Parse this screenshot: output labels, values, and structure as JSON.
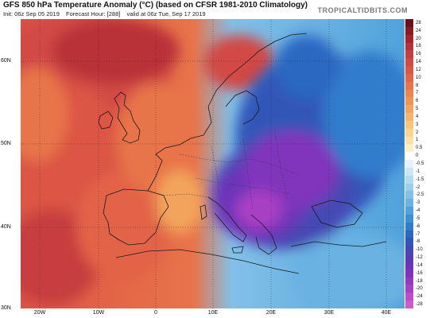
{
  "header": {
    "title": "GFS 850 hPa Temperature Anomaly (°C) (based on CFSR 1981-2010 Climatology)",
    "init": "Init: 06z Sep 05 2019",
    "forecast_hour": "Forecast Hour: [288]",
    "valid": "valid at 06z Tue, Sep 17 2019",
    "brand": "TROPICALTIDBITS.COM"
  },
  "axes": {
    "lat_labels": [
      "60N",
      "50N",
      "40N",
      "30N"
    ],
    "lon_labels": [
      "20W",
      "10W",
      "0",
      "10E",
      "20E",
      "30E",
      "40E"
    ]
  },
  "colorbar": {
    "labels": [
      "28",
      "24",
      "20",
      "18",
      "16",
      "14",
      "12",
      "10",
      "8",
      "7",
      "6",
      "5",
      "4",
      "3",
      "2",
      "1",
      "0.5",
      "0",
      "-0.5",
      "-1",
      "-1.5",
      "-2",
      "-2.5",
      "-3",
      "-4",
      "-5",
      "-6",
      "-7",
      "-8",
      "-10",
      "-12",
      "-14",
      "-16",
      "-18",
      "-20",
      "-24",
      "-28"
    ],
    "colors": [
      "#6b1018",
      "#8a1a22",
      "#a3242c",
      "#b83038",
      "#c73c40",
      "#d24844",
      "#dc5444",
      "#e26446",
      "#e8744a",
      "#ec844e",
      "#f09454",
      "#f3a45c",
      "#f6b468",
      "#f8c478",
      "#fad48c",
      "#fbe2a4",
      "#fcefc4",
      "#ffffff",
      "#e6f2f8",
      "#cde6f4",
      "#b4daf0",
      "#9bcdec",
      "#82c0e8",
      "#69b2e2",
      "#50a2dc",
      "#3c90d4",
      "#307ccc",
      "#2c68c2",
      "#3056b8",
      "#4448b4",
      "#583cb4",
      "#6c34b8",
      "#8034bc",
      "#9438c0",
      "#a840c4",
      "#bc4cc8",
      "#cc5ccc"
    ]
  },
  "map_colors": {
    "warm_dark": "#b83038",
    "warm_mid": "#e26446",
    "warm_light": "#f3a45c",
    "cold_light": "#69b2e2",
    "cold_mid": "#3056b8",
    "cold_deep": "#8034bc",
    "cold_extreme": "#a840c4"
  }
}
